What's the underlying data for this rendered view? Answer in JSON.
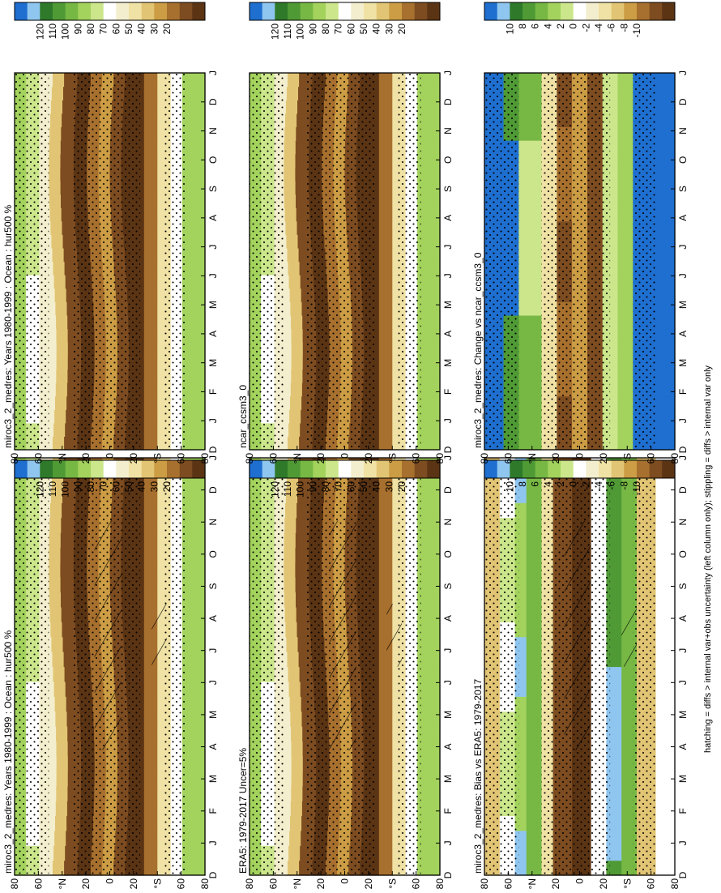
{
  "figure": {
    "footnote": "hatching = diffs > internal var+obs uncertainty (left column only); stippling = diffs > internal var only"
  },
  "chart_data": [
    {
      "type": "heatmap",
      "panel": "top-left",
      "title": "miroc3_2_medres: Years 1980-1999 : Ocean : hur500 %",
      "x_ticks": [
        "D",
        "J",
        "F",
        "M",
        "A",
        "M",
        "J",
        "J",
        "A",
        "S",
        "O",
        "N",
        "D",
        "J"
      ],
      "y_ticks": [
        "80",
        "60",
        "°N",
        "20",
        "0",
        "20",
        "°S",
        "60",
        "80"
      ],
      "colorbar_ticks": [
        "120",
        "110",
        "100",
        "90",
        "80",
        "70",
        "60",
        "50",
        "40",
        "30",
        "20"
      ],
      "field": "absolute",
      "hatching": true,
      "stippling": true
    },
    {
      "type": "heatmap",
      "panel": "top-right",
      "title": "miroc3_2_medres: Years 1980-1999 : Ocean : hur500 %",
      "x_ticks": [
        "D",
        "J",
        "F",
        "M",
        "A",
        "M",
        "J",
        "J",
        "A",
        "S",
        "O",
        "N",
        "D",
        "J"
      ],
      "y_ticks": [
        "80",
        "60",
        "°N",
        "20",
        "0",
        "20",
        "°S",
        "60",
        "80"
      ],
      "colorbar_ticks": [
        "120",
        "110",
        "100",
        "90",
        "80",
        "70",
        "60",
        "50",
        "40",
        "30",
        "20"
      ],
      "field": "absolute",
      "hatching": false,
      "stippling": true
    },
    {
      "type": "heatmap",
      "panel": "middle-left",
      "title": "ERA5: 1979-2017 Uncer=5%",
      "x_ticks": [
        "D",
        "J",
        "F",
        "M",
        "A",
        "M",
        "J",
        "J",
        "A",
        "S",
        "O",
        "N",
        "D",
        "J"
      ],
      "y_ticks": [
        "80",
        "60",
        "°N",
        "20",
        "0",
        "20",
        "°S",
        "60",
        "80"
      ],
      "colorbar_ticks": [
        "120",
        "110",
        "100",
        "90",
        "80",
        "70",
        "60",
        "50",
        "40",
        "30",
        "20"
      ],
      "field": "absolute",
      "hatching": true,
      "stippling": true
    },
    {
      "type": "heatmap",
      "panel": "middle-right",
      "title": "ncar_ccsm3_0",
      "x_ticks": [
        "D",
        "J",
        "F",
        "M",
        "A",
        "M",
        "J",
        "J",
        "A",
        "S",
        "O",
        "N",
        "D",
        "J"
      ],
      "y_ticks": [
        "80",
        "60",
        "°N",
        "20",
        "0",
        "20",
        "°S",
        "60",
        "80"
      ],
      "colorbar_ticks": [
        "120",
        "110",
        "100",
        "90",
        "80",
        "70",
        "60",
        "50",
        "40",
        "30",
        "20"
      ],
      "field": "absolute",
      "hatching": false,
      "stippling": true
    },
    {
      "type": "heatmap",
      "panel": "bottom-left",
      "title": "miroc3_2_medres: Bias vs ERA5: 1979-2017",
      "x_ticks": [
        "D",
        "J",
        "F",
        "M",
        "A",
        "M",
        "J",
        "J",
        "A",
        "S",
        "O",
        "N",
        "D",
        "J"
      ],
      "y_ticks": [
        "80",
        "60",
        "°N",
        "20",
        "0",
        "20",
        "°S",
        "60",
        "80"
      ],
      "colorbar_ticks": [
        "10",
        "8",
        "6",
        "4",
        "2",
        "0",
        "-2",
        "-4",
        "-6",
        "-8",
        "-10"
      ],
      "field": "difference",
      "hatching": true,
      "stippling": true
    },
    {
      "type": "heatmap",
      "panel": "bottom-right",
      "title": "miroc3_2_medres: Change vs ncar_ccsm3_0",
      "x_ticks": [
        "D",
        "J",
        "F",
        "M",
        "A",
        "M",
        "J",
        "J",
        "A",
        "S",
        "O",
        "N",
        "D",
        "J"
      ],
      "y_ticks": [
        "80",
        "60",
        "°N",
        "20",
        "0",
        "20",
        "°S",
        "60",
        "80"
      ],
      "colorbar_ticks": [
        "10",
        "8",
        "6",
        "4",
        "2",
        "0",
        "-2",
        "-4",
        "-6",
        "-8",
        "-10"
      ],
      "field": "difference",
      "hatching": false,
      "stippling": true
    }
  ],
  "colorscales": {
    "absolute": [
      "#1e6fd0",
      "#8fc6f0",
      "#2e7a2a",
      "#4f9a35",
      "#77b844",
      "#a3d35d",
      "#cbe68b",
      "#ffffff",
      "#f3eecd",
      "#f0e2a4",
      "#e2c574",
      "#cc9d45",
      "#a8702e",
      "#7d4c20",
      "#5b3414"
    ],
    "difference": [
      "#1e6fd0",
      "#8fc6f0",
      "#2e7a2a",
      "#4f9a35",
      "#77b844",
      "#a3d35d",
      "#cbe68b",
      "#ffffff",
      "#f3eecd",
      "#f0e2a4",
      "#e2c574",
      "#cc9d45",
      "#a8702e",
      "#7d4c20",
      "#5b3414"
    ]
  }
}
